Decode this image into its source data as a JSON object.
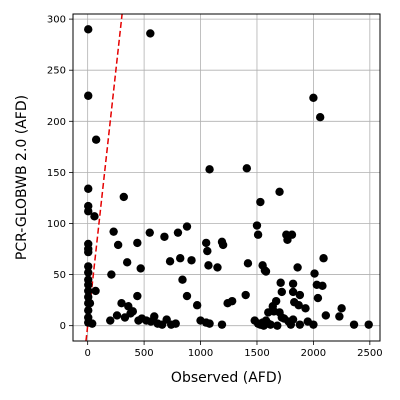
{
  "chart_data": {
    "type": "scatter",
    "xlabel": "Observed (AFD)",
    "ylabel": "PCR-GLOBWB 2.0 (AFD)",
    "xlim": [
      -130,
      2590
    ],
    "ylim": [
      -15,
      305
    ],
    "xticks": [
      0,
      500,
      1000,
      1500,
      2000,
      2500
    ],
    "yticks": [
      0,
      50,
      100,
      150,
      200,
      250,
      300
    ],
    "xtick_labels": [
      "0",
      "500",
      "1000",
      "1500",
      "2000",
      "2500"
    ],
    "ytick_labels": [
      "0",
      "50",
      "100",
      "150",
      "200",
      "250",
      "300"
    ],
    "grid": true,
    "reference_line": {
      "style": "dashed",
      "color": "#e50000",
      "slope": 1,
      "intercept": 0
    },
    "marker_color": "#000000",
    "points": [
      [
        5,
        290
      ],
      [
        555,
        286
      ],
      [
        5,
        225
      ],
      [
        75,
        182
      ],
      [
        5,
        134
      ],
      [
        5,
        117
      ],
      [
        5,
        112
      ],
      [
        60,
        107
      ],
      [
        5,
        80
      ],
      [
        5,
        75
      ],
      [
        5,
        72
      ],
      [
        5,
        58
      ],
      [
        5,
        52
      ],
      [
        5,
        45
      ],
      [
        5,
        40
      ],
      [
        5,
        34
      ],
      [
        5,
        28
      ],
      [
        5,
        22
      ],
      [
        5,
        15
      ],
      [
        5,
        8
      ],
      [
        5,
        3
      ],
      [
        40,
        2
      ],
      [
        70,
        34
      ],
      [
        20,
        22
      ],
      [
        320,
        126
      ],
      [
        230,
        92
      ],
      [
        270,
        79
      ],
      [
        210,
        50
      ],
      [
        350,
        62
      ],
      [
        440,
        81
      ],
      [
        550,
        91
      ],
      [
        470,
        56
      ],
      [
        680,
        87
      ],
      [
        800,
        91
      ],
      [
        880,
        97
      ],
      [
        920,
        64
      ],
      [
        730,
        63
      ],
      [
        820,
        66
      ],
      [
        840,
        45
      ],
      [
        880,
        29
      ],
      [
        970,
        20
      ],
      [
        1080,
        153
      ],
      [
        1050,
        81
      ],
      [
        1060,
        73
      ],
      [
        1070,
        59
      ],
      [
        1150,
        57
      ],
      [
        1190,
        82
      ],
      [
        1200,
        79
      ],
      [
        1240,
        22
      ],
      [
        1280,
        24
      ],
      [
        1400,
        30
      ],
      [
        1410,
        154
      ],
      [
        1420,
        61
      ],
      [
        1500,
        98
      ],
      [
        1510,
        89
      ],
      [
        1530,
        121
      ],
      [
        1550,
        59
      ],
      [
        1570,
        54
      ],
      [
        1580,
        53
      ],
      [
        1640,
        19
      ],
      [
        1670,
        24
      ],
      [
        1700,
        131
      ],
      [
        1710,
        42
      ],
      [
        1720,
        33
      ],
      [
        1760,
        89
      ],
      [
        1770,
        84
      ],
      [
        1810,
        89
      ],
      [
        1820,
        41
      ],
      [
        1820,
        33
      ],
      [
        1830,
        23
      ],
      [
        1860,
        57
      ],
      [
        1870,
        20
      ],
      [
        1880,
        30
      ],
      [
        1930,
        17
      ],
      [
        2000,
        223
      ],
      [
        2010,
        51
      ],
      [
        2030,
        40
      ],
      [
        2040,
        27
      ],
      [
        2060,
        204
      ],
      [
        2080,
        39
      ],
      [
        2090,
        66
      ],
      [
        2110,
        10
      ],
      [
        2230,
        9
      ],
      [
        2250,
        17
      ],
      [
        2360,
        1
      ],
      [
        2490,
        1
      ],
      [
        200,
        5
      ],
      [
        260,
        10
      ],
      [
        300,
        22
      ],
      [
        330,
        8
      ],
      [
        360,
        19
      ],
      [
        380,
        12
      ],
      [
        400,
        14
      ],
      [
        440,
        29
      ],
      [
        450,
        5
      ],
      [
        480,
        7
      ],
      [
        520,
        5
      ],
      [
        560,
        4
      ],
      [
        590,
        9
      ],
      [
        620,
        2
      ],
      [
        660,
        1
      ],
      [
        700,
        6
      ],
      [
        740,
        1
      ],
      [
        780,
        2
      ],
      [
        1000,
        5
      ],
      [
        1050,
        3
      ],
      [
        1080,
        2
      ],
      [
        1190,
        1
      ],
      [
        1480,
        5
      ],
      [
        1510,
        2
      ],
      [
        1530,
        1
      ],
      [
        1550,
        3
      ],
      [
        1580,
        5
      ],
      [
        1600,
        2
      ],
      [
        1620,
        1
      ],
      [
        1650,
        14
      ],
      [
        1700,
        13
      ],
      [
        1720,
        8
      ],
      [
        1740,
        7
      ],
      [
        1780,
        4
      ],
      [
        1800,
        1
      ],
      [
        1820,
        6
      ],
      [
        1880,
        1
      ],
      [
        1950,
        4
      ],
      [
        2000,
        1
      ],
      [
        1600,
        13
      ],
      [
        1680,
        0
      ],
      [
        1560,
        0
      ]
    ]
  }
}
